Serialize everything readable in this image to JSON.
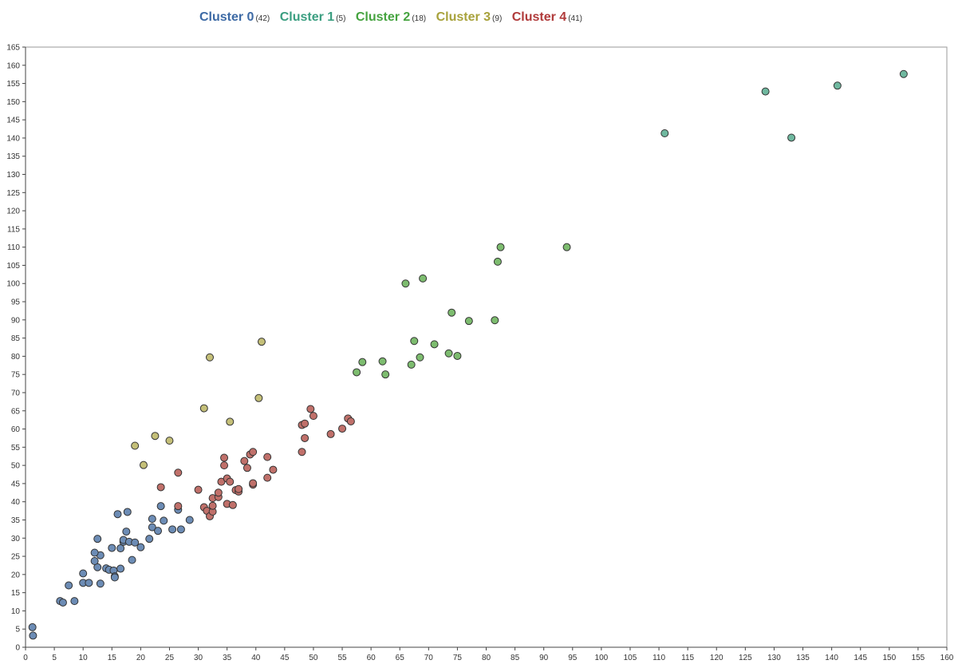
{
  "chart_data": {
    "type": "scatter",
    "title": "",
    "xlabel": "",
    "ylabel": "",
    "xlim": [
      0,
      160
    ],
    "ylim": [
      0,
      165
    ],
    "x_ticks": [
      0,
      5,
      10,
      15,
      20,
      25,
      30,
      35,
      40,
      45,
      50,
      55,
      60,
      65,
      70,
      75,
      80,
      85,
      90,
      95,
      100,
      105,
      110,
      115,
      120,
      125,
      130,
      135,
      140,
      145,
      150,
      155,
      160
    ],
    "y_ticks": [
      0,
      5,
      10,
      15,
      20,
      25,
      30,
      35,
      40,
      45,
      50,
      55,
      60,
      65,
      70,
      75,
      80,
      85,
      90,
      95,
      100,
      105,
      110,
      115,
      120,
      125,
      130,
      135,
      140,
      145,
      150,
      155,
      160,
      165
    ],
    "grid": true,
    "legend_position": "top",
    "series": [
      {
        "name": "Cluster 0",
        "count_label": "(42)",
        "label_color": "#3d6aa5",
        "fill": "#6c8cb5",
        "points": [
          [
            1.2,
            5.5
          ],
          [
            1.3,
            3.2
          ],
          [
            6,
            12.7
          ],
          [
            6.5,
            12.3
          ],
          [
            8.5,
            12.7
          ],
          [
            7.5,
            17
          ],
          [
            10,
            17.7
          ],
          [
            10,
            20.3
          ],
          [
            11,
            17.7
          ],
          [
            13,
            17.5
          ],
          [
            12.5,
            22
          ],
          [
            12,
            23.7
          ],
          [
            13,
            25.3
          ],
          [
            12,
            26
          ],
          [
            12.5,
            29.8
          ],
          [
            14,
            21.7
          ],
          [
            14.5,
            21.3
          ],
          [
            15.3,
            21.1
          ],
          [
            15.5,
            19.5
          ],
          [
            15.5,
            19.2
          ],
          [
            15,
            27.3
          ],
          [
            16.5,
            21.6
          ],
          [
            16.5,
            27.2
          ],
          [
            17,
            29
          ],
          [
            17,
            29.5
          ],
          [
            18,
            29
          ],
          [
            17.5,
            31.8
          ],
          [
            19,
            28.8
          ],
          [
            18.5,
            24
          ],
          [
            20,
            27.5
          ],
          [
            21.5,
            29.8
          ],
          [
            22,
            33
          ],
          [
            22,
            35.3
          ],
          [
            23,
            32
          ],
          [
            24,
            34.8
          ],
          [
            23.5,
            38.8
          ],
          [
            25.5,
            32.4
          ],
          [
            27,
            32.4
          ],
          [
            26.5,
            37.8
          ],
          [
            28.5,
            35
          ],
          [
            16,
            36.6
          ],
          [
            17.7,
            37.2
          ]
        ]
      },
      {
        "name": "Cluster 1",
        "count_label": "(5)",
        "label_color": "#3a9e80",
        "fill": "#6fb89f",
        "points": [
          [
            111,
            141.3
          ],
          [
            128.5,
            152.8
          ],
          [
            133,
            140.1
          ],
          [
            141,
            154.4
          ],
          [
            152.5,
            157.6
          ]
        ]
      },
      {
        "name": "Cluster 2",
        "count_label": "(18)",
        "label_color": "#45a33f",
        "fill": "#7dbc6f",
        "points": [
          [
            57.5,
            75.6
          ],
          [
            58.5,
            78.4
          ],
          [
            62,
            78.6
          ],
          [
            62.5,
            75
          ],
          [
            66,
            100
          ],
          [
            67,
            77.7
          ],
          [
            67.5,
            84.2
          ],
          [
            69,
            101.4
          ],
          [
            68.5,
            79.7
          ],
          [
            71,
            83.3
          ],
          [
            73.5,
            80.8
          ],
          [
            74,
            92
          ],
          [
            75,
            80.1
          ],
          [
            77,
            89.7
          ],
          [
            82,
            106
          ],
          [
            82.5,
            110
          ],
          [
            81.5,
            89.9
          ],
          [
            94,
            110
          ]
        ]
      },
      {
        "name": "Cluster 3",
        "count_label": "(9)",
        "label_color": "#a8a23c",
        "fill": "#c4bf78",
        "points": [
          [
            19,
            55.4
          ],
          [
            20.5,
            50.1
          ],
          [
            22.5,
            58.1
          ],
          [
            25,
            56.8
          ],
          [
            31,
            65.7
          ],
          [
            32,
            79.7
          ],
          [
            35.5,
            62
          ],
          [
            40.5,
            68.5
          ],
          [
            41,
            84
          ]
        ]
      },
      {
        "name": "Cluster 4",
        "count_label": "(41)",
        "label_color": "#b03a3a",
        "fill": "#c0706a",
        "points": [
          [
            23.5,
            44
          ],
          [
            26.5,
            48
          ],
          [
            26.5,
            38.8
          ],
          [
            30,
            43.3
          ],
          [
            31,
            38.5
          ],
          [
            31.5,
            37.5
          ],
          [
            32,
            36
          ],
          [
            32.5,
            37.3
          ],
          [
            32.5,
            38.9
          ],
          [
            32.5,
            41
          ],
          [
            33.5,
            41.3
          ],
          [
            33.5,
            42.5
          ],
          [
            34,
            45.5
          ],
          [
            34.5,
            50
          ],
          [
            34.5,
            52.1
          ],
          [
            35,
            39.4
          ],
          [
            35,
            46.4
          ],
          [
            35.5,
            45.5
          ],
          [
            36,
            39.1
          ],
          [
            36.5,
            43.2
          ],
          [
            37,
            42.8
          ],
          [
            37,
            43.5
          ],
          [
            38,
            51.2
          ],
          [
            38.5,
            49.3
          ],
          [
            39,
            53
          ],
          [
            39.5,
            53.7
          ],
          [
            39.5,
            44.7
          ],
          [
            39.5,
            45.1
          ],
          [
            42,
            46.6
          ],
          [
            42,
            52.3
          ],
          [
            43,
            48.8
          ],
          [
            48,
            53.7
          ],
          [
            48,
            61.1
          ],
          [
            48.5,
            61.5
          ],
          [
            48.5,
            57.5
          ],
          [
            49.5,
            65.5
          ],
          [
            50,
            63.6
          ],
          [
            53,
            58.6
          ],
          [
            55,
            60.1
          ],
          [
            56,
            62.9
          ],
          [
            56.5,
            62.1
          ]
        ]
      }
    ]
  }
}
